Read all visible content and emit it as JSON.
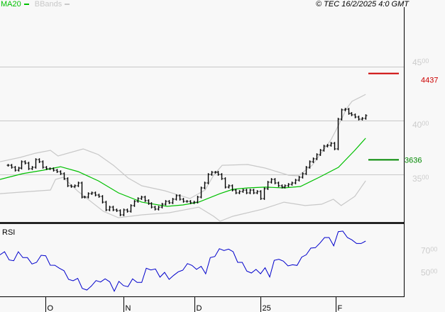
{
  "header": {
    "legend": [
      {
        "label": "MA20",
        "color": "#00c000"
      },
      {
        "label": "BBands",
        "color": "#c8c8c8"
      }
    ],
    "copyright": "© TEC 16/2/2025 4:0 GMT"
  },
  "colors": {
    "background": "#f8f8f8",
    "bars": "#000000",
    "ma20": "#00c000",
    "bbands": "#c8c8c8",
    "grid": "#c8c8c8",
    "rsi": "#0000cc",
    "resistance": "#cc0000",
    "support": "#008800",
    "axis_labels": "#cccccc"
  },
  "chart_data": [
    {
      "type": "ohlc",
      "panel": "price",
      "first_bar_date": "2024-09-16",
      "last_bar_date": "2025-02-14",
      "x_range": [
        "2024-09-13",
        "2025-02-28"
      ],
      "ylim": [
        2900,
        4800
      ],
      "grid": true,
      "y_ticks": [
        "4500",
        "4000",
        "3500"
      ],
      "x_ticks": [
        {
          "label": "O",
          "date": "2024-10-01"
        },
        {
          "label": "N",
          "date": "2024-11-01"
        },
        {
          "label": "D",
          "date": "2024-12-02"
        },
        {
          "label": "25",
          "date": "2025-01-02"
        },
        {
          "label": "F",
          "date": "2025-02-03"
        }
      ],
      "closes": [
        3585,
        3566,
        3539,
        3559,
        3618,
        3605,
        3553,
        3566,
        3638,
        3618,
        3566,
        3553,
        3553,
        3539,
        3526,
        3507,
        3461,
        3395,
        3388,
        3395,
        3421,
        3290,
        3290,
        3322,
        3329,
        3309,
        3296,
        3243,
        3171,
        3197,
        3171,
        3164,
        3125,
        3171,
        3158,
        3211,
        3250,
        3276,
        3290,
        3257,
        3230,
        3197,
        3178,
        3197,
        3224,
        3250,
        3237,
        3270,
        3303,
        3270,
        3250,
        3250,
        3237,
        3243,
        3290,
        3375,
        3421,
        3500,
        3520,
        3520,
        3500,
        3461,
        3382,
        3395,
        3355,
        3329,
        3342,
        3355,
        3329,
        3355,
        3329,
        3342,
        3276,
        3368,
        3428,
        3454,
        3421,
        3395,
        3382,
        3395,
        3408,
        3421,
        3447,
        3474,
        3507,
        3566,
        3618,
        3645,
        3684,
        3724,
        3763,
        3770,
        3789,
        3737,
        4013,
        4099,
        4105,
        4066,
        4053,
        4033,
        4013,
        4020,
        4046
      ],
      "ma20": [
        [
          "2024-09-13",
          3454
        ],
        [
          "2024-09-22",
          3507
        ],
        [
          "2024-09-30",
          3539
        ],
        [
          "2024-10-07",
          3572
        ],
        [
          "2024-10-14",
          3526
        ],
        [
          "2024-10-22",
          3441
        ],
        [
          "2024-10-30",
          3329
        ],
        [
          "2024-11-09",
          3243
        ],
        [
          "2024-11-20",
          3204
        ],
        [
          "2024-11-27",
          3217
        ],
        [
          "2024-12-04",
          3243
        ],
        [
          "2024-12-14",
          3322
        ],
        [
          "2024-12-20",
          3362
        ],
        [
          "2024-12-27",
          3375
        ],
        [
          "2025-01-04",
          3382
        ],
        [
          "2025-01-12",
          3375
        ],
        [
          "2025-01-19",
          3388
        ],
        [
          "2025-01-27",
          3474
        ],
        [
          "2025-02-04",
          3566
        ],
        [
          "2025-02-10",
          3724
        ],
        [
          "2025-02-14",
          3836
        ]
      ],
      "bb_upper": [
        [
          "2024-09-13",
          3618
        ],
        [
          "2024-09-21",
          3658
        ],
        [
          "2024-09-27",
          3697
        ],
        [
          "2024-10-03",
          3724
        ],
        [
          "2024-10-06",
          3671
        ],
        [
          "2024-10-16",
          3737
        ],
        [
          "2024-10-22",
          3684
        ],
        [
          "2024-10-28",
          3585
        ],
        [
          "2024-11-03",
          3467
        ],
        [
          "2024-11-09",
          3395
        ],
        [
          "2024-11-19",
          3349
        ],
        [
          "2024-11-30",
          3276
        ],
        [
          "2024-12-07",
          3355
        ],
        [
          "2024-12-11",
          3493
        ],
        [
          "2024-12-15",
          3585
        ],
        [
          "2024-12-27",
          3592
        ],
        [
          "2025-01-04",
          3559
        ],
        [
          "2025-01-14",
          3493
        ],
        [
          "2025-01-18",
          3487
        ],
        [
          "2025-01-24",
          3585
        ],
        [
          "2025-02-01",
          3822
        ],
        [
          "2025-02-04",
          3954
        ],
        [
          "2025-02-07",
          4112
        ],
        [
          "2025-02-09",
          4178
        ],
        [
          "2025-02-14",
          4243
        ]
      ],
      "bb_lower": [
        [
          "2024-09-13",
          3322
        ],
        [
          "2024-09-25",
          3342
        ],
        [
          "2024-10-03",
          3355
        ],
        [
          "2024-10-05",
          3454
        ],
        [
          "2024-10-08",
          3474
        ],
        [
          "2024-10-14",
          3342
        ],
        [
          "2024-10-24",
          3158
        ],
        [
          "2024-10-30",
          3099
        ],
        [
          "2024-11-09",
          3125
        ],
        [
          "2024-11-21",
          3145
        ],
        [
          "2024-12-04",
          3197
        ],
        [
          "2024-12-11",
          3112
        ],
        [
          "2024-12-14",
          3066
        ],
        [
          "2024-12-20",
          3112
        ],
        [
          "2025-01-03",
          3178
        ],
        [
          "2025-01-12",
          3243
        ],
        [
          "2025-01-21",
          3211
        ],
        [
          "2025-01-28",
          3224
        ],
        [
          "2025-02-02",
          3270
        ],
        [
          "2025-02-05",
          3211
        ],
        [
          "2025-02-10",
          3296
        ],
        [
          "2025-02-14",
          3441
        ]
      ],
      "levels": [
        {
          "label": "4437",
          "value": 4437,
          "color": "#cc0000"
        },
        {
          "label": "3636",
          "value": 3636,
          "color": "#008800"
        }
      ]
    },
    {
      "type": "line",
      "panel": "rsi",
      "title": "RSI",
      "first_date": "2024-09-13",
      "last_date": "2025-02-14",
      "y_ticks": [
        "7000",
        "5000"
      ],
      "values": [
        65.7,
        68.5,
        60.9,
        60.2,
        68.5,
        63.1,
        63.1,
        57.2,
        58.7,
        65.2,
        64.8,
        56.1,
        56.0,
        53.3,
        51.0,
        43.0,
        41.7,
        43.9,
        34.7,
        33.2,
        36.9,
        41.9,
        40.6,
        43.5,
        40.8,
        32.1,
        41.2,
        37.3,
        36.3,
        43.5,
        40.2,
        40.2,
        53.3,
        51.7,
        52.6,
        45.0,
        49.5,
        43.0,
        46.7,
        50.0,
        51.5,
        57.6,
        55.9,
        52.2,
        55.0,
        48.2,
        63.1,
        64.1,
        71.3,
        69.6,
        70.9,
        68.5,
        58.7,
        58.7,
        50.6,
        48.9,
        52.2,
        48.2,
        53.7,
        45.2,
        60.5,
        61.5,
        59.8,
        55.4,
        56.5,
        55.9,
        63.5,
        65.7,
        71.8,
        72.2,
        76.5,
        81.6,
        81.6,
        73.9,
        87.0,
        87.5,
        81.6,
        79.4,
        76.1,
        76.1,
        78.3
      ]
    }
  ]
}
